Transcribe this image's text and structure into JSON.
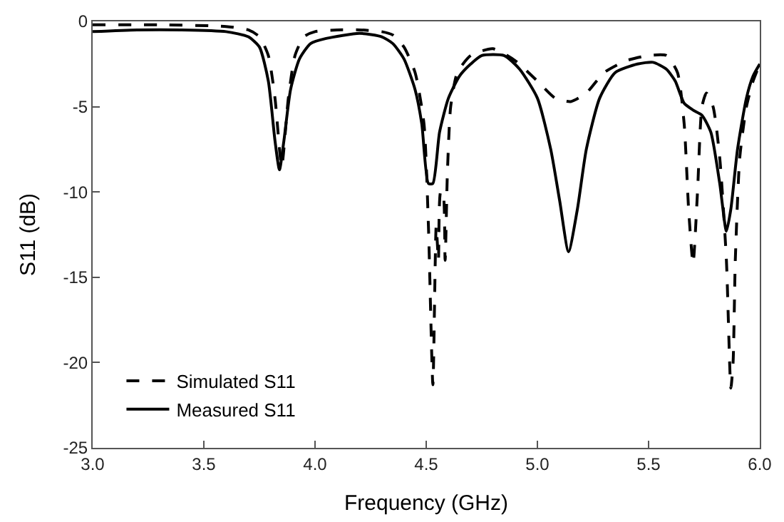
{
  "chart_data": {
    "type": "line",
    "xlabel": "Frequency (GHz)",
    "ylabel": "S11 (dB)",
    "xlim": [
      3.0,
      6.0
    ],
    "xticks": [
      {
        "value": 3.0,
        "label": "3.0"
      },
      {
        "value": 3.5,
        "label": "3.5"
      },
      {
        "value": 4.0,
        "label": "4.0"
      },
      {
        "value": 4.5,
        "label": "4.5"
      },
      {
        "value": 5.0,
        "label": "5.0"
      },
      {
        "value": 5.5,
        "label": "5.5"
      },
      {
        "value": 6.0,
        "label": "6.0"
      }
    ],
    "ylim": [
      -25,
      0
    ],
    "yticks": [
      -25,
      -20,
      -15,
      -10,
      -5,
      0
    ],
    "legend": "bottom left",
    "series": [
      {
        "name": "Simulated S11",
        "color": "#000000",
        "line_style": "dashed",
        "x": [
          3.0,
          3.3,
          3.6,
          3.7,
          3.75,
          3.79,
          3.82,
          3.85,
          3.88,
          3.91,
          3.95,
          4.0,
          4.1,
          4.2,
          4.3,
          4.35,
          4.4,
          4.45,
          4.49,
          4.51,
          4.53,
          4.545,
          4.555,
          4.565,
          4.575,
          4.585,
          4.595,
          4.61,
          4.64,
          4.7,
          4.8,
          4.9,
          5.0,
          5.08,
          5.15,
          5.22,
          5.3,
          5.4,
          5.5,
          5.58,
          5.63,
          5.66,
          5.68,
          5.7,
          5.72,
          5.74,
          5.76,
          5.79,
          5.82,
          5.85,
          5.87,
          5.88,
          5.89,
          5.91,
          5.94,
          5.97,
          6.0
        ],
        "values": [
          -0.2,
          -0.2,
          -0.3,
          -0.5,
          -0.9,
          -2.0,
          -4.5,
          -8.5,
          -4.5,
          -2.0,
          -0.9,
          -0.6,
          -0.5,
          -0.5,
          -0.6,
          -0.8,
          -1.5,
          -3.0,
          -6.0,
          -12,
          -21.3,
          -12,
          -14,
          -10,
          -10,
          -14,
          -9,
          -5,
          -3.0,
          -2.0,
          -1.6,
          -2.3,
          -3.5,
          -4.5,
          -4.7,
          -4.2,
          -3.0,
          -2.3,
          -2.0,
          -2.0,
          -3.0,
          -6,
          -11,
          -14.2,
          -10,
          -5,
          -4.2,
          -5,
          -8,
          -14,
          -21.5,
          -20,
          -14,
          -8,
          -5,
          -3.5,
          -2.5
        ]
      },
      {
        "name": "Measured S11",
        "color": "#000000",
        "line_style": "solid",
        "x": [
          3.0,
          3.2,
          3.4,
          3.6,
          3.7,
          3.75,
          3.79,
          3.82,
          3.84,
          3.86,
          3.89,
          3.93,
          3.98,
          4.05,
          4.2,
          4.3,
          4.35,
          4.4,
          4.45,
          4.48,
          4.51,
          4.53,
          4.56,
          4.6,
          4.65,
          4.7,
          4.75,
          4.85,
          4.92,
          5.0,
          5.06,
          5.1,
          5.14,
          5.18,
          5.22,
          5.28,
          5.35,
          5.45,
          5.52,
          5.58,
          5.62,
          5.66,
          5.7,
          5.74,
          5.78,
          5.82,
          5.85,
          5.87,
          5.9,
          5.94,
          5.97,
          6.0
        ],
        "values": [
          -0.6,
          -0.5,
          -0.5,
          -0.6,
          -0.9,
          -1.5,
          -3.5,
          -7,
          -8.7,
          -7,
          -4,
          -2.2,
          -1.3,
          -1.0,
          -0.7,
          -0.9,
          -1.3,
          -2.2,
          -4,
          -6,
          -9.5,
          -9.5,
          -6.5,
          -4.5,
          -3.2,
          -2.5,
          -2.0,
          -2.0,
          -2.8,
          -4.5,
          -7.5,
          -10.5,
          -13.5,
          -11,
          -7.5,
          -4.5,
          -3.0,
          -2.5,
          -2.4,
          -2.8,
          -3.5,
          -4.8,
          -5.2,
          -5.5,
          -6.5,
          -9.5,
          -12.3,
          -11,
          -7.5,
          -4.5,
          -3.2,
          -2.5
        ]
      }
    ]
  }
}
